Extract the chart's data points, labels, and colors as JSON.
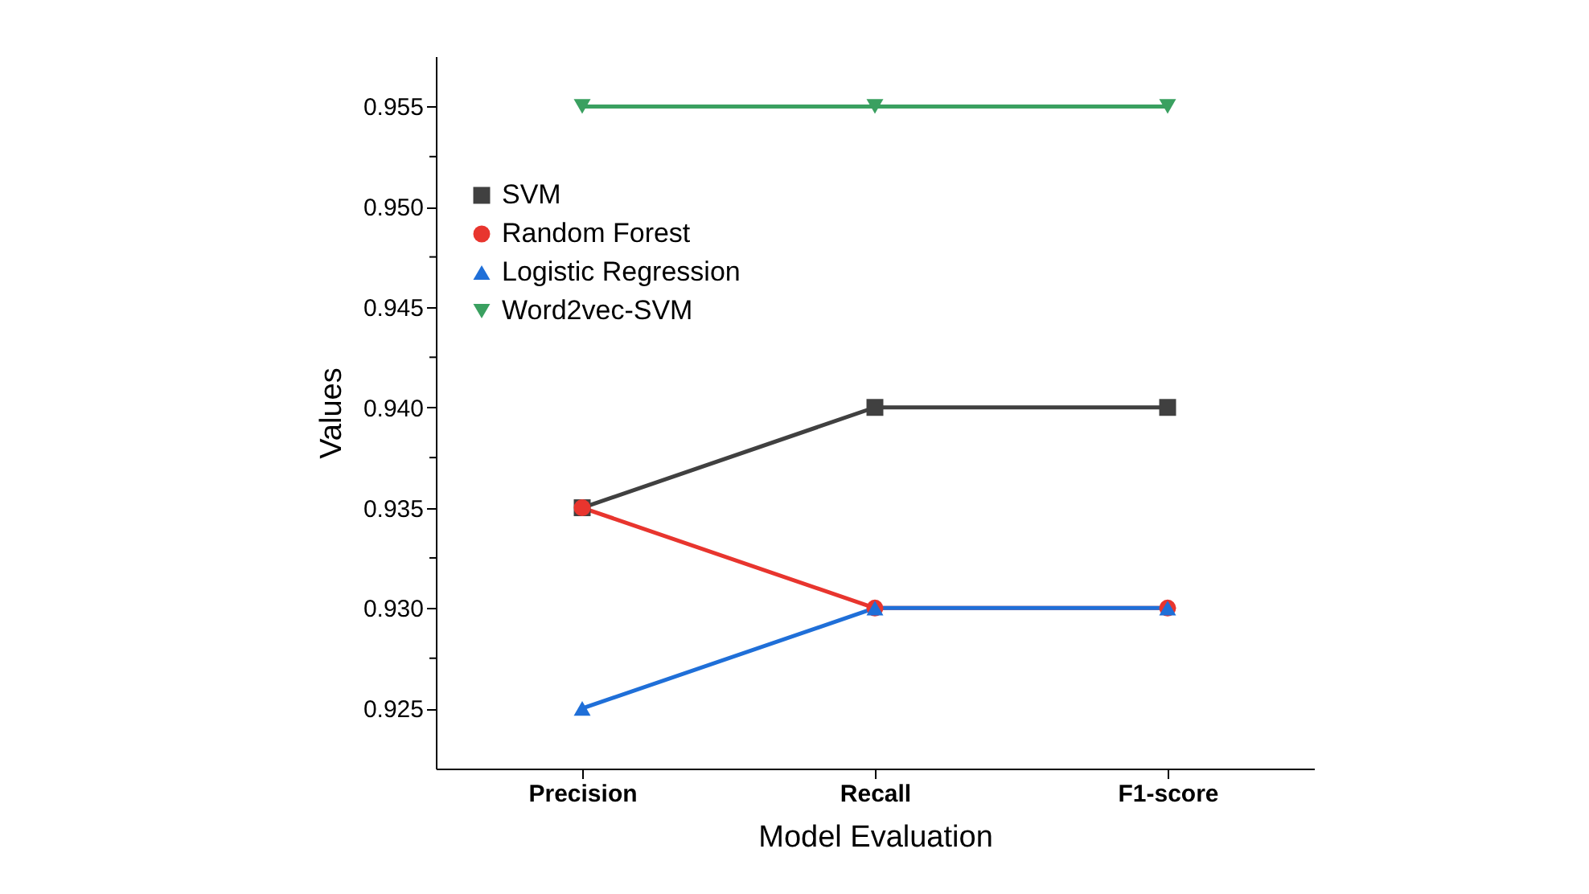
{
  "chart_data": {
    "type": "line",
    "xlabel": "Model Evaluation",
    "ylabel": "Values",
    "categories": [
      "Precision",
      "Recall",
      "F1-score"
    ],
    "series": [
      {
        "name": "SVM",
        "color": "#404040",
        "marker": "square",
        "values": [
          0.935,
          0.94,
          0.94
        ]
      },
      {
        "name": "Random Forest",
        "color": "#e8352e",
        "marker": "circle",
        "values": [
          0.935,
          0.93,
          0.93
        ]
      },
      {
        "name": "Logistic Regression",
        "color": "#1f6fd8",
        "marker": "triangle",
        "values": [
          0.925,
          0.93,
          0.93
        ]
      },
      {
        "name": "Word2vec-SVM",
        "color": "#3aa060",
        "marker": "triangle-down",
        "values": [
          0.955,
          0.955,
          0.955
        ]
      }
    ],
    "ylim": [
      0.922,
      0.9575
    ],
    "yticks": [
      0.925,
      {
        "value": 0.9275,
        "label": null
      },
      {
        "value": 0.93,
        "label": "0.930"
      },
      {
        "value": 0.9325,
        "label": null
      },
      0.935,
      {
        "value": 0.9375,
        "label": null
      },
      {
        "value": 0.94,
        "label": "0.940"
      },
      {
        "value": 0.9425,
        "label": null
      },
      0.945,
      {
        "value": 0.9475,
        "label": null
      },
      {
        "value": 0.95,
        "label": "0.950"
      },
      {
        "value": 0.9525,
        "label": null
      },
      0.955
    ],
    "grid": false,
    "legend": "top left",
    "line_style": "solid"
  }
}
